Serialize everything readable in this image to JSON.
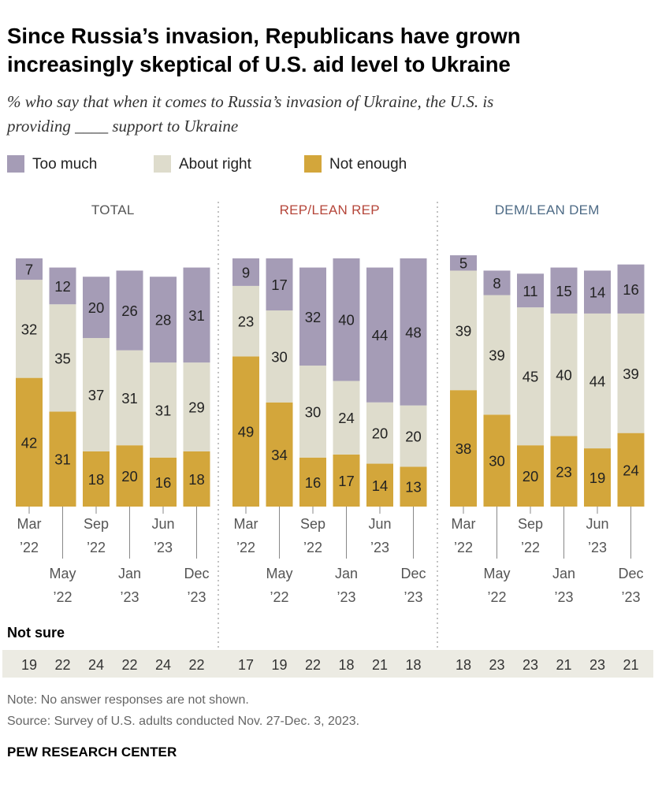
{
  "title_line1": "Since Russia’s invasion, Republicans have grown",
  "title_line2": "increasingly skeptical of U.S. aid level to Ukraine",
  "subtitle_line1": "% who say that when it comes to Russia’s invasion of Ukraine, the U.S. is",
  "subtitle_line2": "providing ____ support to Ukraine",
  "legend": [
    {
      "label": "Too much",
      "color": "#a59cb6"
    },
    {
      "label": "About right",
      "color": "#dedccc"
    },
    {
      "label": "Not enough",
      "color": "#d3a63b"
    }
  ],
  "not_sure_label": "Not sure",
  "note": "Note: No answer responses are not shown.",
  "source": "Source: Survey of U.S. adults conducted Nov. 27-Dec. 3, 2023.",
  "brand": "PEW RESEARCH CENTER",
  "colors": {
    "too_much": "#a59cb6",
    "about_right": "#dedccc",
    "not_enough": "#d3a63b",
    "rep_title": "#b5463a",
    "dem_title": "#4d6a85",
    "total_title": "#555555",
    "not_sure_band": "#ecebe3"
  },
  "chart_data": {
    "type": "bar",
    "stacked": true,
    "x_labels": [
      [
        "Mar",
        "’22"
      ],
      [
        "May",
        "’22"
      ],
      [
        "Sep",
        "’22"
      ],
      [
        "Jan",
        "’23"
      ],
      [
        "Jun",
        "’23"
      ],
      [
        "Dec",
        "’23"
      ]
    ],
    "panels": [
      {
        "title": "TOTAL",
        "series": [
          {
            "name": "Not enough",
            "values": [
              42,
              31,
              18,
              20,
              16,
              18
            ]
          },
          {
            "name": "About right",
            "values": [
              32,
              35,
              37,
              31,
              31,
              29
            ]
          },
          {
            "name": "Too much",
            "values": [
              7,
              12,
              20,
              26,
              28,
              31
            ]
          }
        ],
        "not_sure": [
          19,
          22,
          24,
          22,
          24,
          22
        ]
      },
      {
        "title": "REP/LEAN REP",
        "series": [
          {
            "name": "Not enough",
            "values": [
              49,
              34,
              16,
              17,
              14,
              13
            ]
          },
          {
            "name": "About right",
            "values": [
              23,
              30,
              30,
              24,
              20,
              20
            ]
          },
          {
            "name": "Too much",
            "values": [
              9,
              17,
              32,
              40,
              44,
              48
            ]
          }
        ],
        "not_sure": [
          17,
          19,
          22,
          18,
          21,
          18
        ]
      },
      {
        "title": "DEM/LEAN DEM",
        "series": [
          {
            "name": "Not enough",
            "values": [
              38,
              30,
              20,
              23,
              19,
              24
            ]
          },
          {
            "name": "About right",
            "values": [
              39,
              39,
              45,
              40,
              44,
              39
            ]
          },
          {
            "name": "Too much",
            "values": [
              5,
              8,
              11,
              15,
              14,
              16
            ]
          }
        ],
        "not_sure": [
          18,
          23,
          23,
          21,
          23,
          21
        ]
      }
    ]
  }
}
